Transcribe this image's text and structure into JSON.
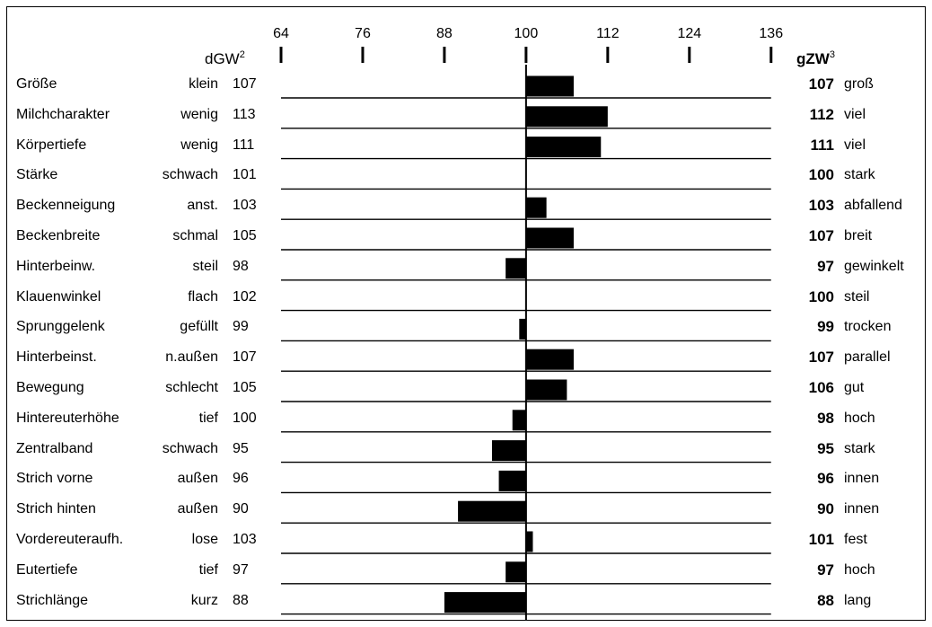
{
  "header": {
    "left_label": "dGW",
    "left_sup": "2",
    "right_label": "gZW",
    "right_sup": "3"
  },
  "colors": {
    "bar": "#000000",
    "line": "#000000",
    "background": "#ffffff"
  },
  "chart_data": {
    "type": "bar",
    "orientation": "horizontal",
    "baseline": 100,
    "xlim": [
      64,
      136
    ],
    "x_ticks": [
      64,
      76,
      88,
      100,
      112,
      124,
      136
    ],
    "rows": [
      {
        "trait": "Größe",
        "low": "klein",
        "dgw": "107",
        "gzw": "107",
        "high": "groß",
        "value": 107
      },
      {
        "trait": "Milchcharakter",
        "low": "wenig",
        "dgw": "113",
        "gzw": "112",
        "high": "viel",
        "value": 112
      },
      {
        "trait": "Körpertiefe",
        "low": "wenig",
        "dgw": "111",
        "gzw": "111",
        "high": "viel",
        "value": 111
      },
      {
        "trait": "Stärke",
        "low": "schwach",
        "dgw": "101",
        "gzw": "100",
        "high": "stark",
        "value": 100
      },
      {
        "trait": "Beckenneigung",
        "low": "anst.",
        "dgw": "103",
        "gzw": "103",
        "high": "abfallend",
        "value": 103
      },
      {
        "trait": "Beckenbreite",
        "low": "schmal",
        "dgw": "105",
        "gzw": "107",
        "high": "breit",
        "value": 107
      },
      {
        "trait": "Hinterbeinw.",
        "low": "steil",
        "dgw": "98",
        "gzw": "97",
        "high": "gewinkelt",
        "value": 97
      },
      {
        "trait": "Klauenwinkel",
        "low": "flach",
        "dgw": "102",
        "gzw": "100",
        "high": "steil",
        "value": 100
      },
      {
        "trait": "Sprunggelenk",
        "low": "gefüllt",
        "dgw": "99",
        "gzw": "99",
        "high": "trocken",
        "value": 99
      },
      {
        "trait": "Hinterbeinst.",
        "low": "n.außen",
        "dgw": "107",
        "gzw": "107",
        "high": "parallel",
        "value": 107
      },
      {
        "trait": "Bewegung",
        "low": "schlecht",
        "dgw": "105",
        "gzw": "106",
        "high": "gut",
        "value": 106
      },
      {
        "trait": "Hintereuterhöhe",
        "low": "tief",
        "dgw": "100",
        "gzw": "98",
        "high": "hoch",
        "value": 98
      },
      {
        "trait": "Zentralband",
        "low": "schwach",
        "dgw": "95",
        "gzw": "95",
        "high": "stark",
        "value": 95
      },
      {
        "trait": "Strich vorne",
        "low": "außen",
        "dgw": "96",
        "gzw": "96",
        "high": "innen",
        "value": 96
      },
      {
        "trait": "Strich hinten",
        "low": "außen",
        "dgw": "90",
        "gzw": "90",
        "high": "innen",
        "value": 90
      },
      {
        "trait": "Vordereuteraufh.",
        "low": "lose",
        "dgw": "103",
        "gzw": "101",
        "high": "fest",
        "value": 101
      },
      {
        "trait": "Eutertiefe",
        "low": "tief",
        "dgw": "97",
        "gzw": "97",
        "high": "hoch",
        "value": 97
      },
      {
        "trait": "Strichlänge",
        "low": "kurz",
        "dgw": "88",
        "gzw": "88",
        "high": "lang",
        "value": 88
      }
    ]
  }
}
